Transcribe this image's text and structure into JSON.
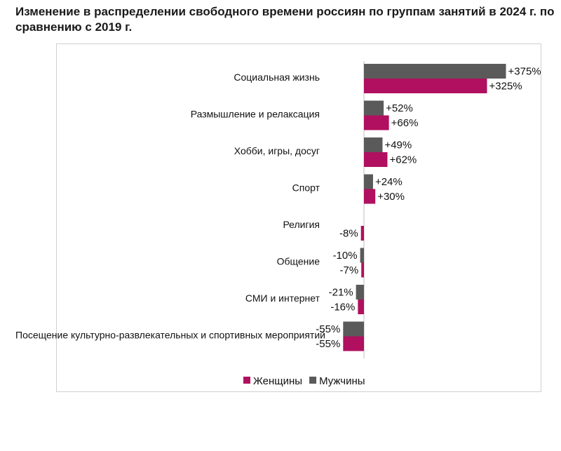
{
  "title": "Изменение в распределении свободного времени россиян по группам занятий в 2024 г. по сравнению с 2019 г.",
  "chart_data": {
    "type": "bar",
    "orientation": "horizontal",
    "title": "Изменение в распределении свободного времени россиян по группам занятий в 2024 г. по сравнению с 2019 г.",
    "categories": [
      "Социальная жизнь",
      "Размышление и релаксация",
      "Хобби, игры, досуг",
      "Спорт",
      "Религия",
      "Общение",
      "СМИ и интернет",
      "Посещение культурно-развлекательных и спортивных мероприятий"
    ],
    "series": [
      {
        "name": "Мужчины",
        "color": "#5a5a5a",
        "values": [
          375,
          52,
          49,
          24,
          null,
          -10,
          -21,
          -55
        ],
        "labels": [
          "+375%",
          "+52%",
          "+49%",
          "+24%",
          "",
          "-10%",
          "-21%",
          "-55%"
        ]
      },
      {
        "name": "Женщины",
        "color": "#b0105f",
        "values": [
          325,
          66,
          62,
          30,
          -8,
          -7,
          -16,
          -55
        ],
        "labels": [
          "+325%",
          "+66%",
          "+62%",
          "+30%",
          "-8%",
          "-7%",
          "-16%",
          "-55%"
        ]
      }
    ],
    "legend": {
      "position": "bottom",
      "order": [
        "Женщины",
        "Мужчины"
      ]
    },
    "grid": false,
    "xlim": [
      -55,
      375
    ]
  }
}
